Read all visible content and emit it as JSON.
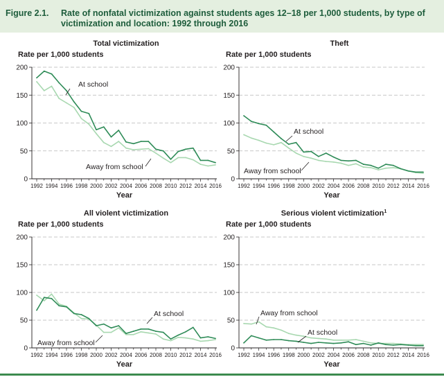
{
  "figure": {
    "label": "Figure 2.1.",
    "title": "Rate of nonfatal victimization against students ages 12–18 per 1,000 students, by type of victimization and location: 1992 through 2016"
  },
  "colors": {
    "at_school": "#2e8b57",
    "away_from_school": "#a8d8b0",
    "header_bg": "#e4efe0"
  },
  "chart_data": [
    {
      "type": "line",
      "title": "Total victimization",
      "ylabel": "Rate per 1,000 students",
      "xlabel": "Year",
      "ylim": [
        0,
        200
      ],
      "yticks": [
        "0",
        "50",
        "100",
        "150",
        "200"
      ],
      "x": [
        1992,
        1993,
        1994,
        1995,
        1996,
        1997,
        1998,
        1999,
        2000,
        2001,
        2002,
        2003,
        2004,
        2005,
        2006,
        2007,
        2008,
        2009,
        2010,
        2011,
        2012,
        2013,
        2014,
        2015,
        2016
      ],
      "xtick_labels": [
        "1992",
        "1994",
        "1996",
        "1998",
        "2000",
        "2002",
        "2004",
        "2006",
        "2008",
        "2010",
        "2012",
        "2014",
        "2016"
      ],
      "grid": "dashed horizontal",
      "series": [
        {
          "name": "At school",
          "key": "at_school",
          "values": [
            181,
            193,
            188,
            172,
            158,
            138,
            121,
            117,
            88,
            93,
            75,
            87,
            66,
            63,
            67,
            67,
            53,
            50,
            35,
            49,
            53,
            55,
            33,
            33,
            29
          ]
        },
        {
          "name": "Away from school",
          "key": "away_from_school",
          "values": [
            174,
            158,
            166,
            144,
            136,
            128,
            108,
            98,
            81,
            65,
            58,
            67,
            55,
            52,
            53,
            54,
            46,
            37,
            29,
            38,
            38,
            34,
            26,
            23,
            25
          ]
        }
      ]
    },
    {
      "type": "line",
      "title": "Theft",
      "ylabel": "Rate per 1,000 students",
      "xlabel": "Year",
      "ylim": [
        0,
        200
      ],
      "yticks": [
        "0",
        "50",
        "100",
        "150",
        "200"
      ],
      "x": [
        1992,
        1993,
        1994,
        1995,
        1996,
        1997,
        1998,
        1999,
        2000,
        2001,
        2002,
        2003,
        2004,
        2005,
        2006,
        2007,
        2008,
        2009,
        2010,
        2011,
        2012,
        2013,
        2014,
        2015,
        2016
      ],
      "xtick_labels": [
        "1992",
        "1994",
        "1996",
        "1998",
        "2000",
        "2002",
        "2004",
        "2006",
        "2008",
        "2010",
        "2012",
        "2014",
        "2016"
      ],
      "grid": "dashed horizontal",
      "series": [
        {
          "name": "At school",
          "key": "at_school",
          "values": [
            113,
            103,
            99,
            96,
            84,
            72,
            62,
            65,
            48,
            49,
            40,
            46,
            39,
            33,
            32,
            33,
            26,
            24,
            19,
            26,
            24,
            18,
            14,
            12,
            12
          ]
        },
        {
          "name": "Away from school",
          "key": "away_from_school",
          "values": [
            79,
            73,
            69,
            64,
            61,
            65,
            55,
            46,
            40,
            37,
            33,
            31,
            30,
            28,
            24,
            27,
            21,
            20,
            16,
            19,
            20,
            18,
            14,
            11,
            10
          ]
        }
      ]
    },
    {
      "type": "line",
      "title": "All violent victimization",
      "ylabel": "Rate per 1,000 students",
      "xlabel": "Year",
      "ylim": [
        0,
        200
      ],
      "yticks": [
        "0",
        "50",
        "100",
        "150",
        "200"
      ],
      "x": [
        1992,
        1993,
        1994,
        1995,
        1996,
        1997,
        1998,
        1999,
        2000,
        2001,
        2002,
        2003,
        2004,
        2005,
        2006,
        2007,
        2008,
        2009,
        2010,
        2011,
        2012,
        2013,
        2014,
        2015,
        2016
      ],
      "xtick_labels": [
        "1992",
        "1994",
        "1996",
        "1998",
        "2000",
        "2002",
        "2004",
        "2006",
        "2008",
        "2010",
        "2012",
        "2014",
        "2016"
      ],
      "grid": "dashed horizontal",
      "series": [
        {
          "name": "At school",
          "key": "at_school",
          "values": [
            68,
            91,
            89,
            76,
            74,
            62,
            60,
            53,
            40,
            43,
            36,
            40,
            26,
            30,
            34,
            34,
            30,
            28,
            16,
            23,
            29,
            37,
            18,
            20,
            17
          ]
        },
        {
          "name": "Away from school",
          "key": "away_from_school",
          "values": [
            95,
            85,
            97,
            79,
            75,
            63,
            53,
            52,
            41,
            28,
            28,
            36,
            24,
            24,
            29,
            27,
            25,
            16,
            13,
            19,
            18,
            16,
            12,
            13,
            15
          ]
        }
      ]
    },
    {
      "type": "line",
      "title": "Serious violent victimization",
      "title_superscript": "1",
      "ylabel": "Rate per 1,000 students",
      "xlabel": "Year",
      "ylim": [
        0,
        200
      ],
      "yticks": [
        "0",
        "50",
        "100",
        "150",
        "200"
      ],
      "x": [
        1992,
        1993,
        1994,
        1995,
        1996,
        1997,
        1998,
        1999,
        2000,
        2001,
        2002,
        2003,
        2004,
        2005,
        2006,
        2007,
        2008,
        2009,
        2010,
        2011,
        2012,
        2013,
        2014,
        2015,
        2016
      ],
      "xtick_labels": [
        "1992",
        "1994",
        "1996",
        "1998",
        "2000",
        "2002",
        "2004",
        "2006",
        "2008",
        "2010",
        "2012",
        "2014",
        "2016"
      ],
      "grid": "dashed horizontal",
      "series": [
        {
          "name": "At school",
          "key": "at_school",
          "values": [
            9,
            22,
            18,
            14,
            15,
            15,
            13,
            12,
            10,
            8,
            10,
            9,
            8,
            9,
            11,
            6,
            8,
            5,
            9,
            6,
            5,
            6,
            5,
            4,
            4
          ]
        },
        {
          "name": "Away from school",
          "key": "away_from_school",
          "values": [
            44,
            43,
            47,
            38,
            36,
            32,
            26,
            23,
            21,
            18,
            17,
            16,
            14,
            14,
            14,
            15,
            12,
            9,
            8,
            8,
            8,
            7,
            6,
            6,
            6
          ]
        }
      ]
    }
  ]
}
